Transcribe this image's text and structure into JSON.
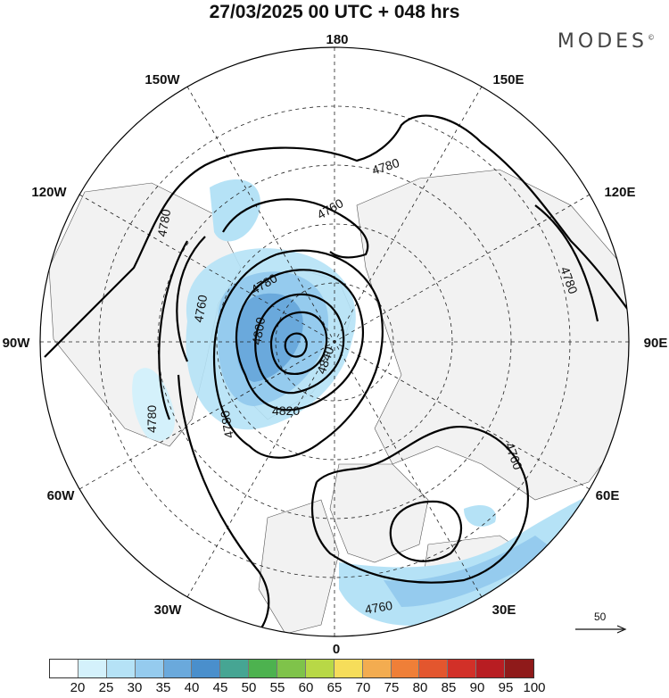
{
  "title": "27/03/2025  00 UTC  + 048 hrs",
  "brand": "MODES",
  "brand_mark": "©",
  "map": {
    "projection": "north polar stereographic",
    "meridian_labels": [
      "180",
      "150E",
      "120E",
      "90E",
      "60E",
      "30E",
      "0",
      "30W",
      "60W",
      "90W",
      "120W",
      "150W"
    ],
    "contour_labels": [
      "4780",
      "4760",
      "4780",
      "4780",
      "4760",
      "4780",
      "4800",
      "4840",
      "4820",
      "4780",
      "4780",
      "4760",
      "4760"
    ],
    "wind_reference": "50",
    "colors": {
      "land": "#f2f2f2",
      "ocean": "#ffffff",
      "contour": "#000000",
      "grid": "#222222"
    }
  },
  "colorbar": {
    "ticks": [
      "20",
      "25",
      "30",
      "35",
      "40",
      "45",
      "50",
      "55",
      "60",
      "65",
      "70",
      "75",
      "80",
      "85",
      "90",
      "95",
      "100"
    ],
    "colors": [
      "#ffffff",
      "#d4f1fb",
      "#b5e2f6",
      "#95cbee",
      "#6aa9dc",
      "#4a8fcc",
      "#46a593",
      "#4db24f",
      "#7fc34a",
      "#b8d846",
      "#f6dd5a",
      "#f3ac50",
      "#ef7f38",
      "#e3562e",
      "#d23028",
      "#b81d22",
      "#8f1a1a"
    ]
  }
}
